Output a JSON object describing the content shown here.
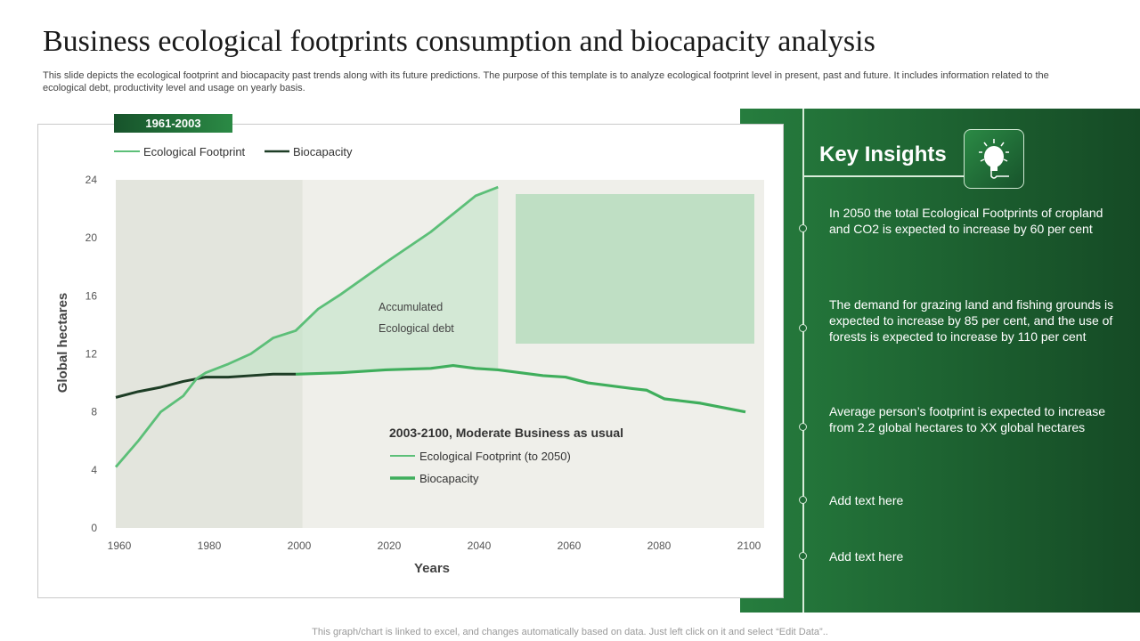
{
  "title": "Business ecological footprints consumption and biocapacity analysis",
  "description": "This slide depicts the ecological footprint and biocapacity past trends along with its future predictions. The purpose of this template is to analyze ecological footprint level in present, past and future.  It includes information related to the ecological debt, productivity level and usage on yearly basis.",
  "footer": "This graph/chart is linked to excel, and changes automatically based on data. Just left click on it and select “Edit Data”..",
  "insights": {
    "title": "Key Insights",
    "icon": "brain-lightbulb-icon",
    "items": [
      "In 2050  the total Ecological Footprints of cropland and CO2 is expected to increase by 60 per cent",
      "The demand for grazing land and fishing grounds is expected to increase by 85 per cent, and the use of forests is expected to increase by 110 per cent",
      "Average person’s footprint is expected to increase from 2.2 global hectares  to XX global hectares",
      "Add text here",
      "Add text here"
    ]
  },
  "colors": {
    "footprint": "#5cbf78",
    "biocapacity_hist": "#1d3d25",
    "biocapacity_future": "#3fae5c",
    "panel": "#1f6a35"
  },
  "chart_data": {
    "type": "line",
    "period_label": "1961-2003",
    "legend_top": [
      "Ecological Footprint",
      "Biocapacity"
    ],
    "xlabel": "Years",
    "ylabel": "Global hectares",
    "xlim": [
      1960,
      2100
    ],
    "ylim": [
      0,
      24
    ],
    "xticks": [
      "1960",
      "1980",
      "2000",
      "2020",
      "2040",
      "2060",
      "2080",
      "2100"
    ],
    "yticks": [
      "0",
      "4",
      "8",
      "12",
      "16",
      "20",
      "24"
    ],
    "annotation": [
      "Accumulated",
      "Ecological debt"
    ],
    "scenario": {
      "title": "2003-2100, Moderate Business as usual",
      "legend": [
        "Ecological Footprint (to 2050)",
        "Biocapacity"
      ]
    },
    "series": [
      {
        "name": "Ecological Footprint",
        "x": [
          1960,
          1965,
          1970,
          1975,
          1978,
          1980,
          1985,
          1990,
          1995,
          2000,
          2005,
          2010,
          2020,
          2030,
          2040,
          2045
        ],
        "y": [
          4.2,
          6.0,
          8.0,
          9.1,
          10.3,
          10.7,
          11.3,
          12.0,
          13.1,
          13.6,
          15.1,
          16.1,
          18.3,
          20.4,
          22.9,
          23.5
        ]
      },
      {
        "name": "Biocapacity",
        "x": [
          1960,
          1965,
          1970,
          1975,
          1980,
          1985,
          1990,
          1995,
          2000
        ],
        "y": [
          9.0,
          9.4,
          9.7,
          10.1,
          10.4,
          10.4,
          10.5,
          10.6,
          10.6
        ]
      },
      {
        "name": "Biocapacity",
        "x": [
          2000,
          2010,
          2020,
          2030,
          2035,
          2040,
          2045,
          2050,
          2055,
          2060,
          2065,
          2070,
          2075,
          2078,
          2082,
          2090,
          2095,
          2100
        ],
        "y": [
          10.6,
          10.7,
          10.9,
          11.0,
          11.2,
          11.0,
          10.9,
          10.7,
          10.5,
          10.4,
          10.0,
          9.8,
          9.6,
          9.5,
          8.9,
          8.6,
          8.3,
          8.0
        ]
      }
    ]
  }
}
